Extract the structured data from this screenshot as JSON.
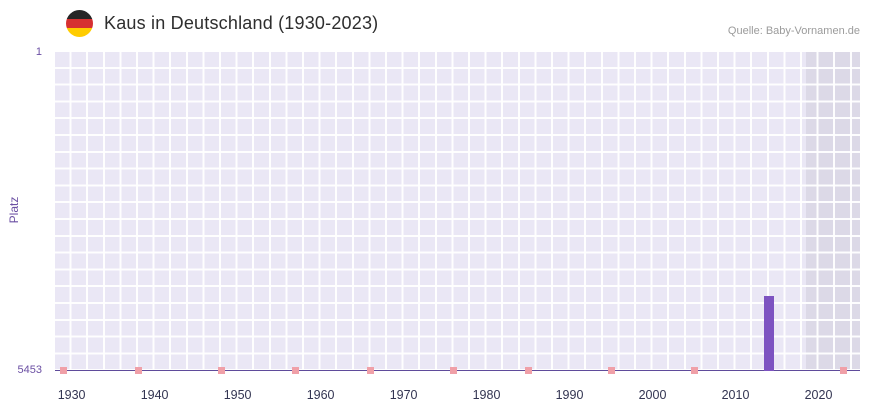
{
  "chart_data": {
    "type": "bar",
    "title": "Kaus in Deutschland (1930-2023)",
    "source": "Quelle: Baby-Vornamen.de",
    "ylabel": "Platz",
    "xlabel": "",
    "y_ticks": [
      "1",
      "5453"
    ],
    "ylim": [
      1,
      5453
    ],
    "y_axis_inverted": true,
    "x_domain": [
      1928,
      2025
    ],
    "x_ticks": [
      1930,
      1940,
      1950,
      1960,
      1970,
      1980,
      1990,
      2000,
      2010,
      2020
    ],
    "rankings": [
      {
        "year": 2014,
        "rank": 4170
      }
    ],
    "no_rank_years": [
      1929,
      1938,
      1948,
      1957,
      1966,
      1976,
      1985,
      1995,
      2005,
      2023
    ],
    "highlight_region": {
      "from_year": 2019,
      "to_year": 2023
    },
    "grid": true,
    "legend": false,
    "icons": {
      "flag": "germany-flag-icon"
    },
    "colors": {
      "bar": "#7d53c1",
      "no_rank_marker": "#f0a0a8",
      "plot_background": "#eae7f5",
      "highlight_background": "#dcd9e7",
      "axis": "#5f4b9b",
      "tick_purple": "#6b4fa3",
      "flag_red": "#d63031",
      "flag_gold": "#ffcc00"
    }
  }
}
